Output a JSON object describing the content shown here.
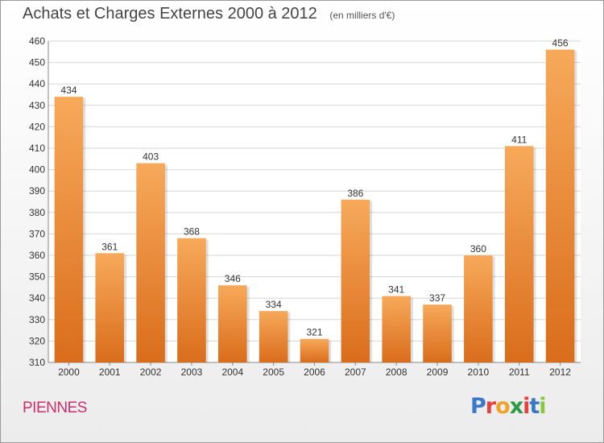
{
  "header": {
    "title": "Achats et Charges Externes 2000 à 2012",
    "subtitle": "(en milliers d'€)"
  },
  "place_name": "PIENNES",
  "logo": {
    "text": "Proxiti",
    "colors": [
      "#3a78c8",
      "#e8423f",
      "#f0a32a",
      "#2d9b46",
      "#e8423f",
      "#3a78c8",
      "#8cc63f"
    ]
  },
  "colors": {
    "bar_light": "#f7a95a",
    "bar_dark": "#d96d1c",
    "grid": "#d6d6d6",
    "axis_text": "#333333"
  },
  "chart_data": {
    "type": "bar",
    "categories": [
      "2000",
      "2001",
      "2002",
      "2003",
      "2004",
      "2005",
      "2006",
      "2007",
      "2008",
      "2009",
      "2010",
      "2011",
      "2012"
    ],
    "values": [
      434,
      361,
      403,
      368,
      346,
      334,
      321,
      386,
      341,
      337,
      360,
      411,
      456
    ],
    "ylim": [
      310,
      460
    ],
    "yticks": [
      310,
      320,
      330,
      340,
      350,
      360,
      370,
      380,
      390,
      400,
      410,
      420,
      430,
      440,
      450,
      460
    ],
    "grid": true,
    "data_labels": true
  }
}
